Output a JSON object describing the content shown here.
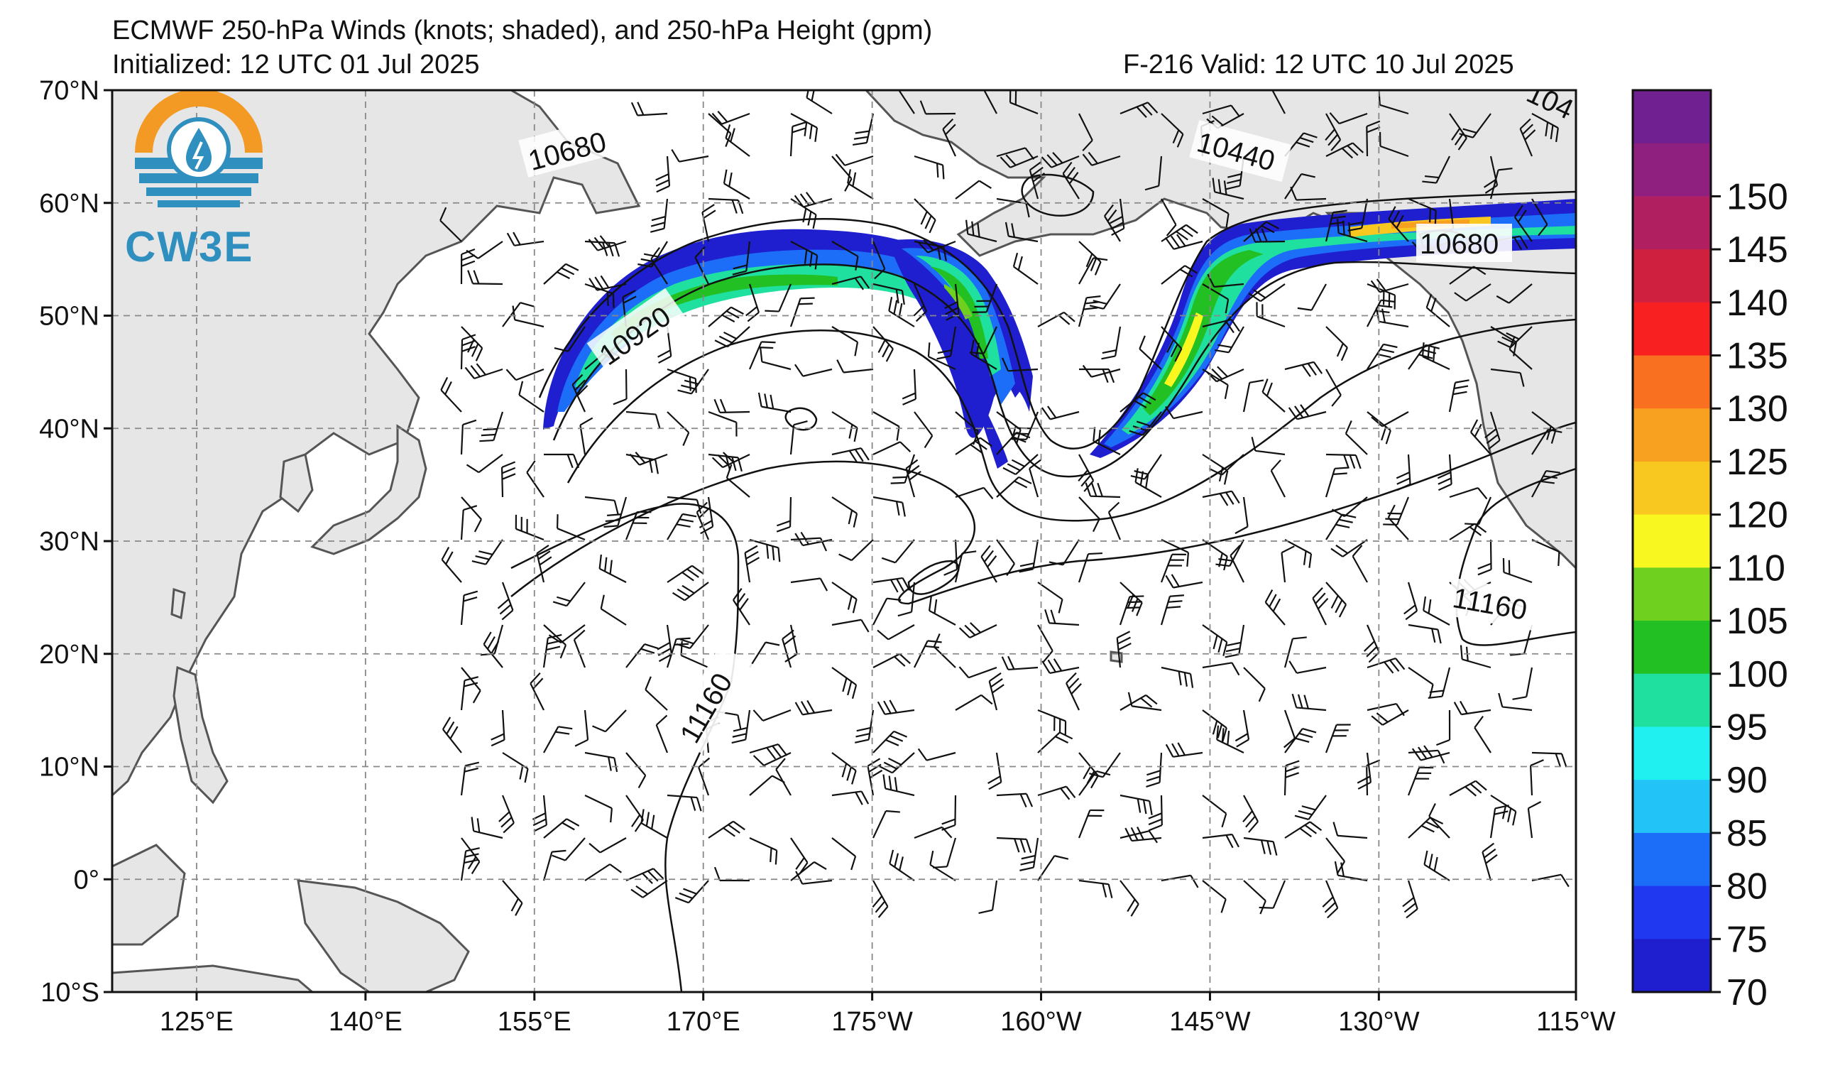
{
  "header": {
    "title": "ECMWF 250-hPa Winds (knots; shaded), and 250-hPa Height (gpm)",
    "initialized": "Initialized: 12 UTC 01 Jul 2025",
    "valid": "F-216  Valid: 12 UTC 10 Jul 2025"
  },
  "logo": {
    "text": "CW3E"
  },
  "axes": {
    "lat_labels": [
      "70°N",
      "60°N",
      "50°N",
      "40°N",
      "30°N",
      "20°N",
      "10°N",
      "0°",
      "10°S"
    ],
    "lon_labels": [
      "125°E",
      "140°E",
      "155°E",
      "170°E",
      "175°W",
      "160°W",
      "145°W",
      "130°W",
      "115°W"
    ]
  },
  "contour_labels": [
    {
      "text": "10680"
    },
    {
      "text": "10440"
    },
    {
      "text": "10920"
    },
    {
      "text": "10680"
    },
    {
      "text": "11160"
    },
    {
      "text": "11160"
    },
    {
      "text": "104"
    }
  ],
  "colorbar": {
    "labels": [
      "70",
      "75",
      "80",
      "85",
      "90",
      "95",
      "100",
      "105",
      "110",
      "120",
      "125",
      "130",
      "135",
      "140",
      "145",
      "150"
    ],
    "colors": [
      "#1f1fd0",
      "#2038f0",
      "#1c6ef8",
      "#22c4f8",
      "#20f0f0",
      "#20e0a0",
      "#22c022",
      "#70d020",
      "#f8f820",
      "#f8c820",
      "#f8a020",
      "#f87020",
      "#f82020",
      "#d02040",
      "#b02060",
      "#902080",
      "#702090"
    ]
  },
  "colors": {
    "land": "#e6e6e6",
    "coast": "#555555",
    "grid": "#888888"
  }
}
